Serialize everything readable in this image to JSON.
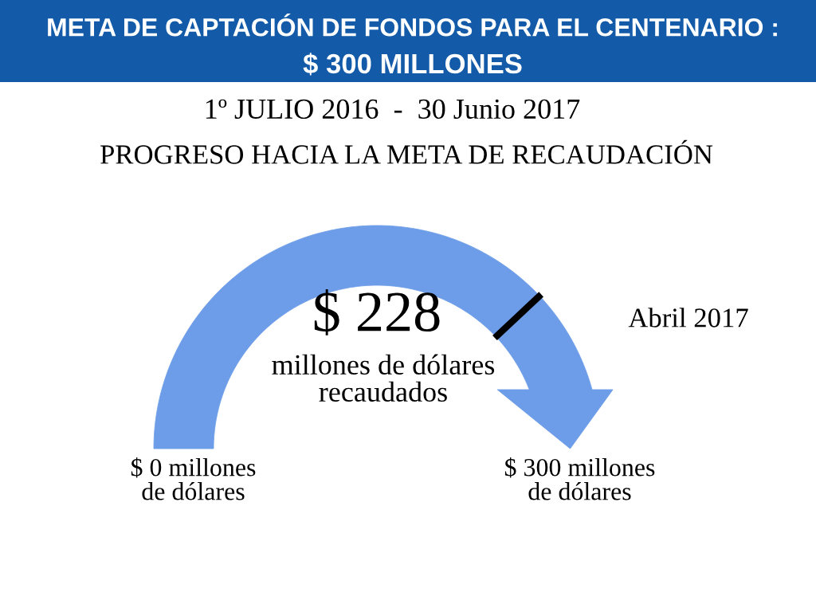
{
  "chart_data": {
    "type": "donut",
    "title": "META DE CAPTACIÓN DE FONDOS PARA EL CENTENARIO :\n$ 300 MILLONES",
    "subtitle": "1º JULIO 2016  -  30 Junio 2017",
    "categories": [
      null,
      null
    ],
    "values": [
      228,
      72
    ],
    "colors": [
      "#6d9de8",
      "#6d9de8"
    ],
    "value_labels": [
      "$ 228",
      null
    ],
    "annotations": [
      "PROGRESO HACIA LA META DE RECAUDACIÓN",
      "millones de dólares\nrecaudados",
      "Abril 2017",
      "$ 0 millones\nde dólares",
      "$ 300 millones\nde dólares"
    ]
  }
}
